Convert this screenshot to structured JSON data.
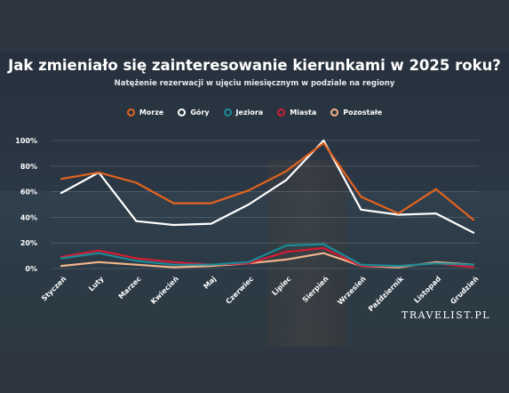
{
  "chart_data": {
    "type": "line",
    "title": "Jak zmieniało się zainteresowanie kierunkami w 2025 roku?",
    "subtitle": "Natężenie rezerwacji w ujęciu miesięcznym w podziale na regiony",
    "categories": [
      "Styczeń",
      "Luty",
      "Marzec",
      "Kwiecień",
      "Maj",
      "Czerwiec",
      "Lipiec",
      "Sierpień",
      "Wrzesień",
      "Październik",
      "Listopad",
      "Grudzień"
    ],
    "ylim": [
      0,
      100
    ],
    "yticks": [
      0,
      20,
      40,
      60,
      80,
      100
    ],
    "ytick_labels": [
      "0%",
      "20%",
      "40%",
      "60%",
      "80%",
      "100%"
    ],
    "legend_position": "top",
    "grid": "horizontal",
    "series": [
      {
        "name": "Morze",
        "color": "#e4621f",
        "values": [
          70,
          75,
          67,
          51,
          51,
          61,
          76,
          98,
          56,
          43,
          62,
          38
        ]
      },
      {
        "name": "Góry",
        "color": "#ffffff",
        "values": [
          59,
          75,
          37,
          34,
          35,
          50,
          69,
          100,
          46,
          42,
          43,
          28
        ]
      },
      {
        "name": "Jeziora",
        "color": "#1a8b97",
        "values": [
          8,
          12,
          6,
          3,
          3,
          5,
          18,
          19,
          3,
          2,
          4,
          3
        ]
      },
      {
        "name": "Miasta",
        "color": "#d31c34",
        "values": [
          9,
          14,
          8,
          5,
          3,
          4,
          13,
          16,
          2,
          2,
          4,
          1
        ]
      },
      {
        "name": "Pozostałe",
        "color": "#f2b48a",
        "values": [
          2,
          5,
          3,
          1,
          2,
          4,
          7,
          12,
          2,
          1,
          5,
          3
        ]
      }
    ]
  },
  "brand": "TRAVELIST.PL"
}
